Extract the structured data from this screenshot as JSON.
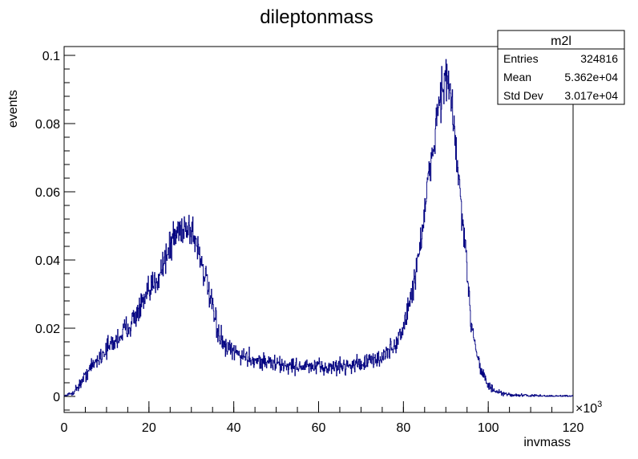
{
  "chart_data": {
    "type": "histogram",
    "title": "dileptonmass",
    "xlabel": "invmass",
    "ylabel": "events",
    "x_multiplier": "×10",
    "x_multiplier_exp": "3",
    "xlim": [
      0,
      120
    ],
    "ylim": [
      0,
      0.1
    ],
    "x_ticks": [
      0,
      20,
      40,
      60,
      80,
      100,
      120
    ],
    "x_tick_labels": [
      "0",
      "20",
      "40",
      "60",
      "80",
      "100",
      "120"
    ],
    "y_ticks": [
      0,
      0.02,
      0.04,
      0.06,
      0.08,
      0.1
    ],
    "y_tick_labels": [
      "0",
      "0.02",
      "0.04",
      "0.06",
      "0.08",
      "0.1"
    ],
    "grid": false,
    "legend": "none",
    "series": [
      {
        "color": "#000080",
        "x": [
          0,
          2,
          4,
          6,
          8,
          10,
          12,
          14,
          16,
          18,
          20,
          22,
          24,
          26,
          28,
          30,
          32,
          34,
          36,
          38,
          40,
          42,
          44,
          46,
          48,
          50,
          52,
          54,
          56,
          58,
          60,
          62,
          64,
          66,
          68,
          70,
          72,
          74,
          76,
          78,
          80,
          82,
          84,
          86,
          88,
          89,
          90,
          91,
          92,
          94,
          96,
          98,
          100,
          102,
          104,
          106,
          108,
          110,
          112,
          114,
          116,
          118,
          120
        ],
        "y": [
          0,
          0.001,
          0.004,
          0.008,
          0.011,
          0.014,
          0.016,
          0.019,
          0.022,
          0.026,
          0.03,
          0.035,
          0.041,
          0.047,
          0.05,
          0.049,
          0.042,
          0.031,
          0.02,
          0.014,
          0.013,
          0.012,
          0.011,
          0.0105,
          0.01,
          0.0095,
          0.009,
          0.009,
          0.0088,
          0.0086,
          0.0085,
          0.0085,
          0.0087,
          0.009,
          0.0093,
          0.0097,
          0.0102,
          0.011,
          0.0125,
          0.015,
          0.02,
          0.03,
          0.045,
          0.063,
          0.083,
          0.09,
          0.093,
          0.089,
          0.078,
          0.05,
          0.022,
          0.009,
          0.003,
          0.0012,
          0.0006,
          0.0004,
          0.0003,
          0.0002,
          0.0002,
          0.0001,
          0.0001,
          0.0001,
          0.0001
        ]
      }
    ]
  },
  "stats_box": {
    "title": "m2l",
    "rows": [
      {
        "label": "Entries",
        "value": "324816"
      },
      {
        "label": "Mean",
        "value": "5.362e+04"
      },
      {
        "label": "Std Dev",
        "value": "3.017e+04"
      }
    ]
  }
}
